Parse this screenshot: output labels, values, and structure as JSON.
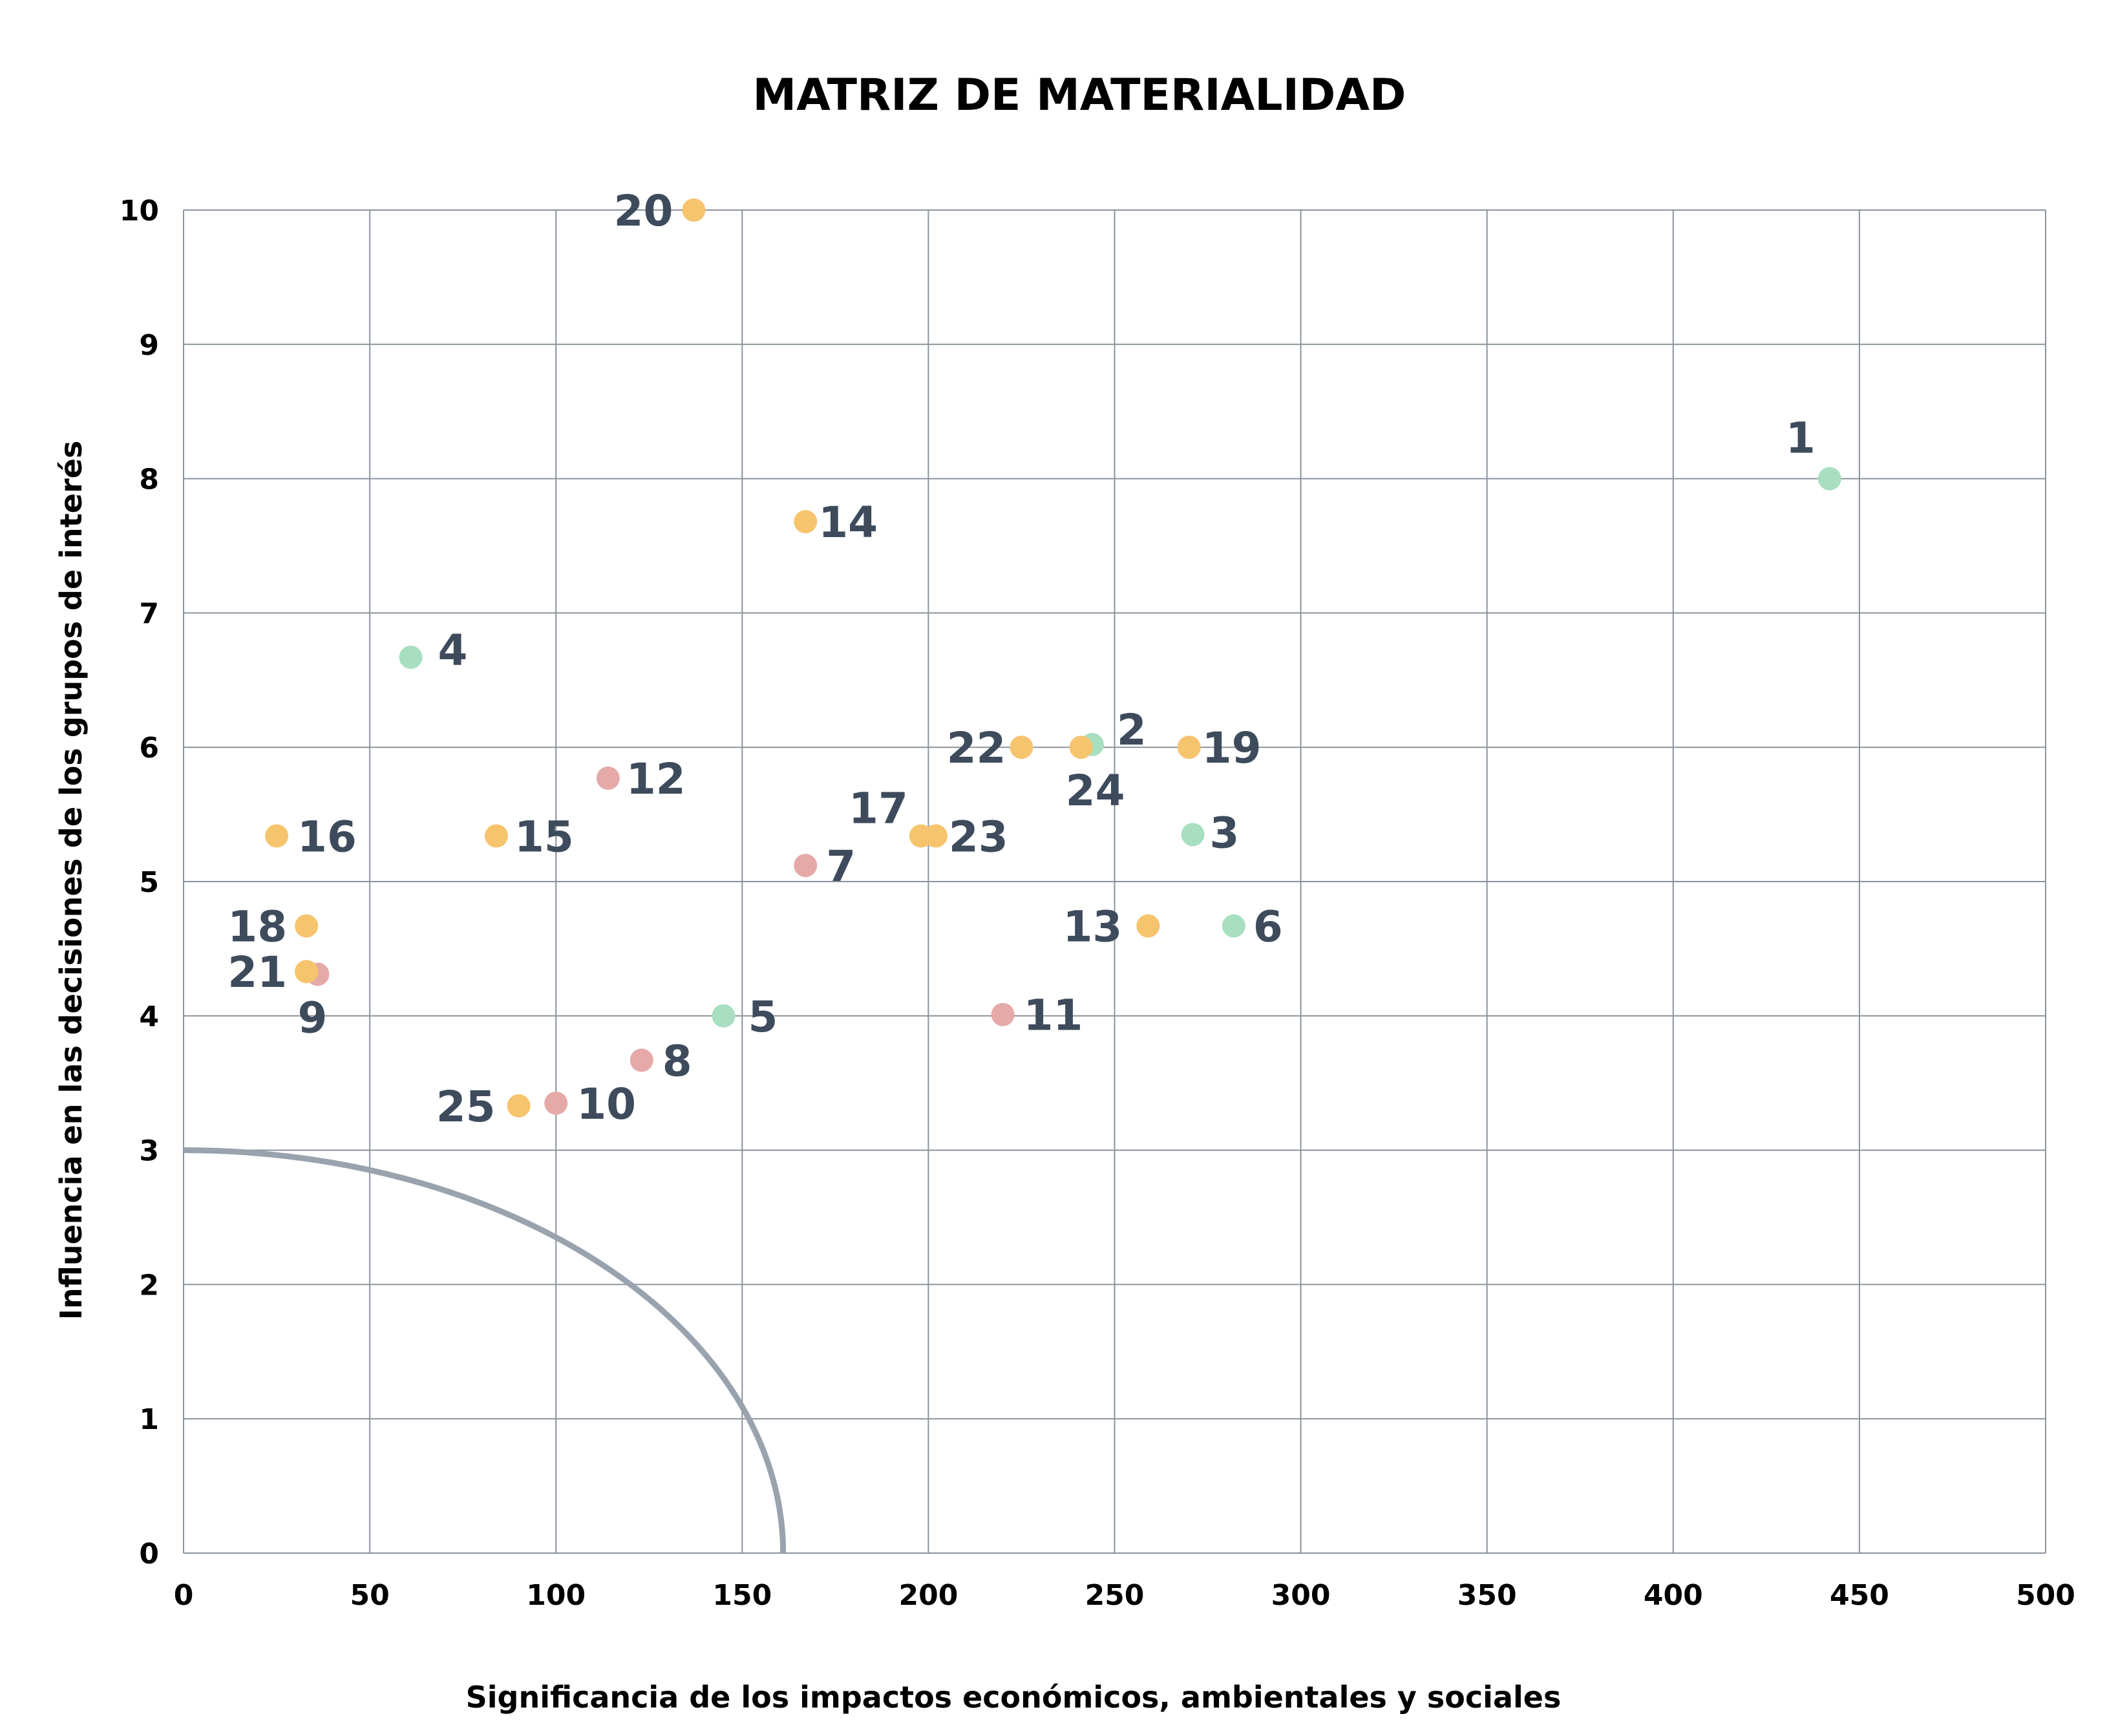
{
  "chart_data": {
    "type": "scatter",
    "title": "MATRIZ DE MATERIALIDAD",
    "xlabel": "Significancia de los impactos económicos, ambientales y sociales",
    "ylabel": "Influencia en las decisiones de los grupos de interés",
    "xlim": [
      0,
      500
    ],
    "ylim": [
      0,
      10
    ],
    "x_ticks": [
      "0",
      "50",
      "100",
      "150",
      "200",
      "250",
      "300",
      "350",
      "400",
      "450",
      "500"
    ],
    "y_ticks": [
      "0",
      "1",
      "2",
      "3",
      "4",
      "5",
      "6",
      "7",
      "8",
      "9",
      "10"
    ],
    "grid": true,
    "threshold_curve": {
      "x_intercept": 161,
      "y_intercept": 3.0,
      "color": "#98a3ae"
    },
    "colors": {
      "green": "#a8dfc0",
      "orange": "#f7c46e",
      "pink": "#e5aaa8"
    },
    "points": [
      {
        "label": "1",
        "x": 442,
        "y": 8.0,
        "color": "green"
      },
      {
        "label": "2",
        "x": 244,
        "y": 6.02,
        "color": "green"
      },
      {
        "label": "3",
        "x": 271,
        "y": 5.35,
        "color": "green"
      },
      {
        "label": "4",
        "x": 61,
        "y": 6.67,
        "color": "green"
      },
      {
        "label": "5",
        "x": 145,
        "y": 4.0,
        "color": "green"
      },
      {
        "label": "6",
        "x": 282,
        "y": 4.67,
        "color": "green"
      },
      {
        "label": "7",
        "x": 167,
        "y": 5.12,
        "color": "pink"
      },
      {
        "label": "8",
        "x": 123,
        "y": 3.67,
        "color": "pink"
      },
      {
        "label": "9",
        "x": 36,
        "y": 4.31,
        "color": "pink"
      },
      {
        "label": "10",
        "x": 100,
        "y": 3.35,
        "color": "pink"
      },
      {
        "label": "11",
        "x": 220,
        "y": 4.01,
        "color": "pink"
      },
      {
        "label": "12",
        "x": 114,
        "y": 5.77,
        "color": "pink"
      },
      {
        "label": "13",
        "x": 259,
        "y": 4.67,
        "color": "orange"
      },
      {
        "label": "14",
        "x": 167,
        "y": 7.68,
        "color": "orange"
      },
      {
        "label": "15",
        "x": 84,
        "y": 5.34,
        "color": "orange"
      },
      {
        "label": "16",
        "x": 25,
        "y": 5.34,
        "color": "orange"
      },
      {
        "label": "17",
        "x": 198,
        "y": 5.34,
        "color": "orange"
      },
      {
        "label": "18",
        "x": 33,
        "y": 4.67,
        "color": "orange"
      },
      {
        "label": "19",
        "x": 270,
        "y": 6.0,
        "color": "orange"
      },
      {
        "label": "20",
        "x": 137,
        "y": 10.0,
        "color": "orange"
      },
      {
        "label": "21",
        "x": 33,
        "y": 4.33,
        "color": "orange"
      },
      {
        "label": "22",
        "x": 225,
        "y": 6.0,
        "color": "orange"
      },
      {
        "label": "23",
        "x": 202,
        "y": 5.34,
        "color": "orange"
      },
      {
        "label": "24",
        "x": 241,
        "y": 6.0,
        "color": "orange"
      },
      {
        "label": "25",
        "x": 90,
        "y": 3.33,
        "color": "orange"
      }
    ]
  }
}
